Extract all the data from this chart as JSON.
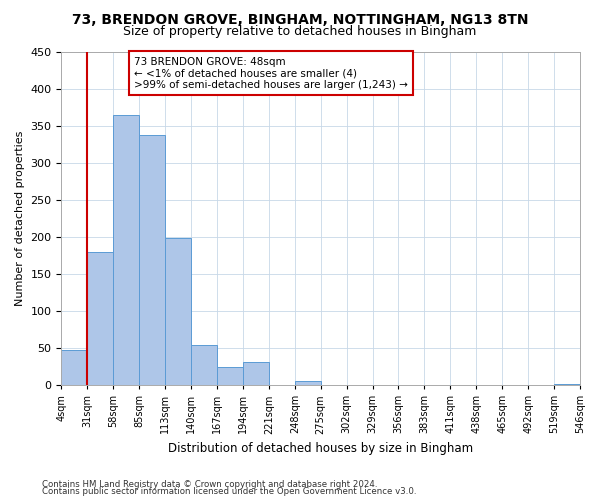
{
  "title": "73, BRENDON GROVE, BINGHAM, NOTTINGHAM, NG13 8TN",
  "subtitle": "Size of property relative to detached houses in Bingham",
  "xlabel": "Distribution of detached houses by size in Bingham",
  "ylabel": "Number of detached properties",
  "bin_labels": [
    "4sqm",
    "31sqm",
    "58sqm",
    "85sqm",
    "113sqm",
    "140sqm",
    "167sqm",
    "194sqm",
    "221sqm",
    "248sqm",
    "275sqm",
    "302sqm",
    "329sqm",
    "356sqm",
    "383sqm",
    "411sqm",
    "438sqm",
    "465sqm",
    "492sqm",
    "519sqm",
    "546sqm"
  ],
  "bar_values": [
    48,
    180,
    365,
    338,
    199,
    54,
    25,
    31,
    0,
    6,
    0,
    0,
    0,
    0,
    0,
    0,
    0,
    0,
    0,
    1
  ],
  "bar_color": "#aec6e8",
  "bar_edge_color": "#5b9bd5",
  "property_line_x": 1,
  "annotation_line1": "73 BRENDON GROVE: 48sqm",
  "annotation_line2": "← <1% of detached houses are smaller (4)",
  "annotation_line3": ">99% of semi-detached houses are larger (1,243) →",
  "annotation_box_color": "#ffffff",
  "annotation_box_edge_color": "#cc0000",
  "vline_color": "#cc0000",
  "ylim": [
    0,
    450
  ],
  "yticks": [
    0,
    50,
    100,
    150,
    200,
    250,
    300,
    350,
    400,
    450
  ],
  "footer1": "Contains HM Land Registry data © Crown copyright and database right 2024.",
  "footer2": "Contains public sector information licensed under the Open Government Licence v3.0.",
  "background_color": "#ffffff",
  "grid_color": "#c8d8e8"
}
